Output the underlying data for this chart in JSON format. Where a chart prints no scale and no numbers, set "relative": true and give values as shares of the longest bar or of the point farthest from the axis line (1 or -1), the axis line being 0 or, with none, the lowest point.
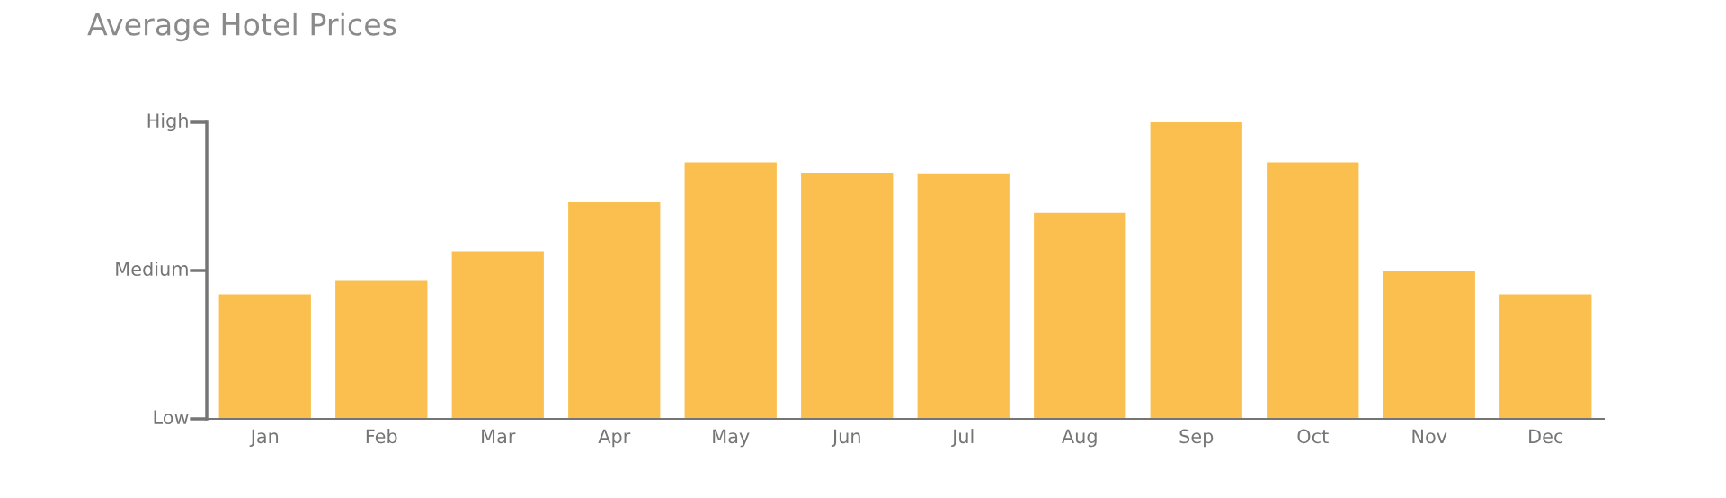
{
  "chart_data": {
    "type": "bar",
    "title": "Average Hotel Prices",
    "categories": [
      "Jan",
      "Feb",
      "Mar",
      "Apr",
      "May",
      "Jun",
      "Jul",
      "Aug",
      "Sep",
      "Oct",
      "Nov",
      "Dec"
    ],
    "values": [
      0.42,
      0.465,
      0.565,
      0.73,
      0.865,
      0.83,
      0.825,
      0.695,
      1.0,
      0.865,
      0.5,
      0.42
    ],
    "color": "#fbbf4f",
    "relative": true,
    "annotations": [
      "Low",
      "Medium",
      "High"
    ],
    "grid": false,
    "legend": false
  }
}
